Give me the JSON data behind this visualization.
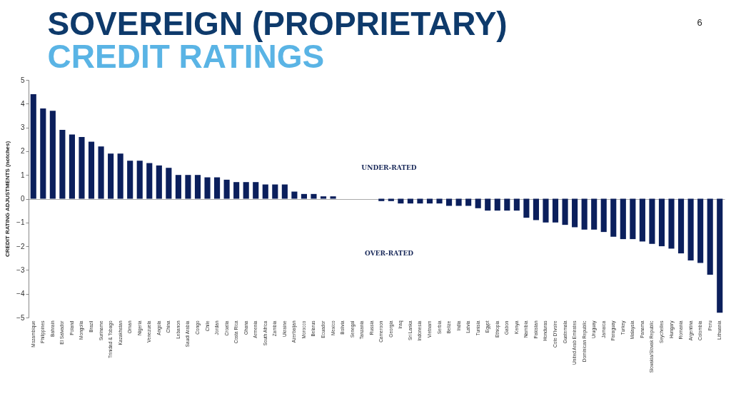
{
  "chart_data": {
    "type": "bar",
    "title": "SOVEREIGN (PROPRIETARY)",
    "subtitle": "CREDIT RATINGS",
    "ylabel": "CREDIT RATING ADJUSTMENTS (notches)",
    "categories": [
      "Mozambique",
      "Philippines",
      "Bahrain",
      "El Salvador",
      "Poland",
      "Mongolia",
      "Brazil",
      "Suriname",
      "Trinidad & Tobago",
      "Kazakhstan",
      "Oman",
      "Nigeria",
      "Venezuela",
      "Angola",
      "China",
      "Lebanon",
      "Saudi Arabia",
      "Congo",
      "Chile",
      "Jordan",
      "Croatia",
      "Costa Rica",
      "Ghana",
      "Armenia",
      "South Africa",
      "Zambia",
      "Ukraine",
      "Azerbaijan",
      "Morocco",
      "Belarus",
      "Ecuador",
      "Mexico",
      "Bolivia",
      "Senegal",
      "Tanzania",
      "Russia",
      "Cameroon",
      "Georgia",
      "Iraq",
      "Sri Lanka",
      "Indonesia",
      "Vietnam",
      "Serbia",
      "Belize",
      "India",
      "Latvia",
      "Tunisia",
      "Egypt",
      "Ethiopia",
      "Gabon",
      "Kenya",
      "Namibia",
      "Pakistan",
      "Honduras",
      "Cote D'Ivoire",
      "Guatemala",
      "United Arab Emirates",
      "Dominican Republic",
      "Uruguay",
      "Jamaica",
      "Paraguay",
      "Turkey",
      "Malaysia",
      "Panama",
      "Slovakia/Slovak Republic",
      "Seychelles",
      "Hungary",
      "Romania",
      "Argentina",
      "Colombia",
      "Peru",
      "Lithuania"
    ],
    "values": [
      4.4,
      3.8,
      3.7,
      2.9,
      2.7,
      2.6,
      2.4,
      2.2,
      1.9,
      1.9,
      1.6,
      1.6,
      1.5,
      1.4,
      1.3,
      1.0,
      1.0,
      1.0,
      0.9,
      0.9,
      0.8,
      0.7,
      0.7,
      0.7,
      0.6,
      0.6,
      0.6,
      0.3,
      0.2,
      0.2,
      0.1,
      0.1,
      0,
      0,
      0,
      0,
      -0.1,
      -0.1,
      -0.2,
      -0.2,
      -0.2,
      -0.2,
      -0.2,
      -0.3,
      -0.3,
      -0.3,
      -0.4,
      -0.5,
      -0.5,
      -0.5,
      -0.5,
      -0.8,
      -0.9,
      -1.0,
      -1.0,
      -1.1,
      -1.2,
      -1.3,
      -1.3,
      -1.4,
      -1.6,
      -1.7,
      -1.7,
      -1.8,
      -1.9,
      -2.0,
      -2.1,
      -2.3,
      -2.6,
      -2.7,
      -3.2,
      -4.8
    ],
    "color": "#0b1f5c",
    "ylim": [
      -5,
      5
    ],
    "yticks": [
      -5,
      -4,
      -3,
      -2,
      -1,
      0,
      1,
      2,
      3,
      4,
      5
    ],
    "annotations": [
      "UNDER-RATED",
      "OVER-RATED",
      "6"
    ]
  }
}
